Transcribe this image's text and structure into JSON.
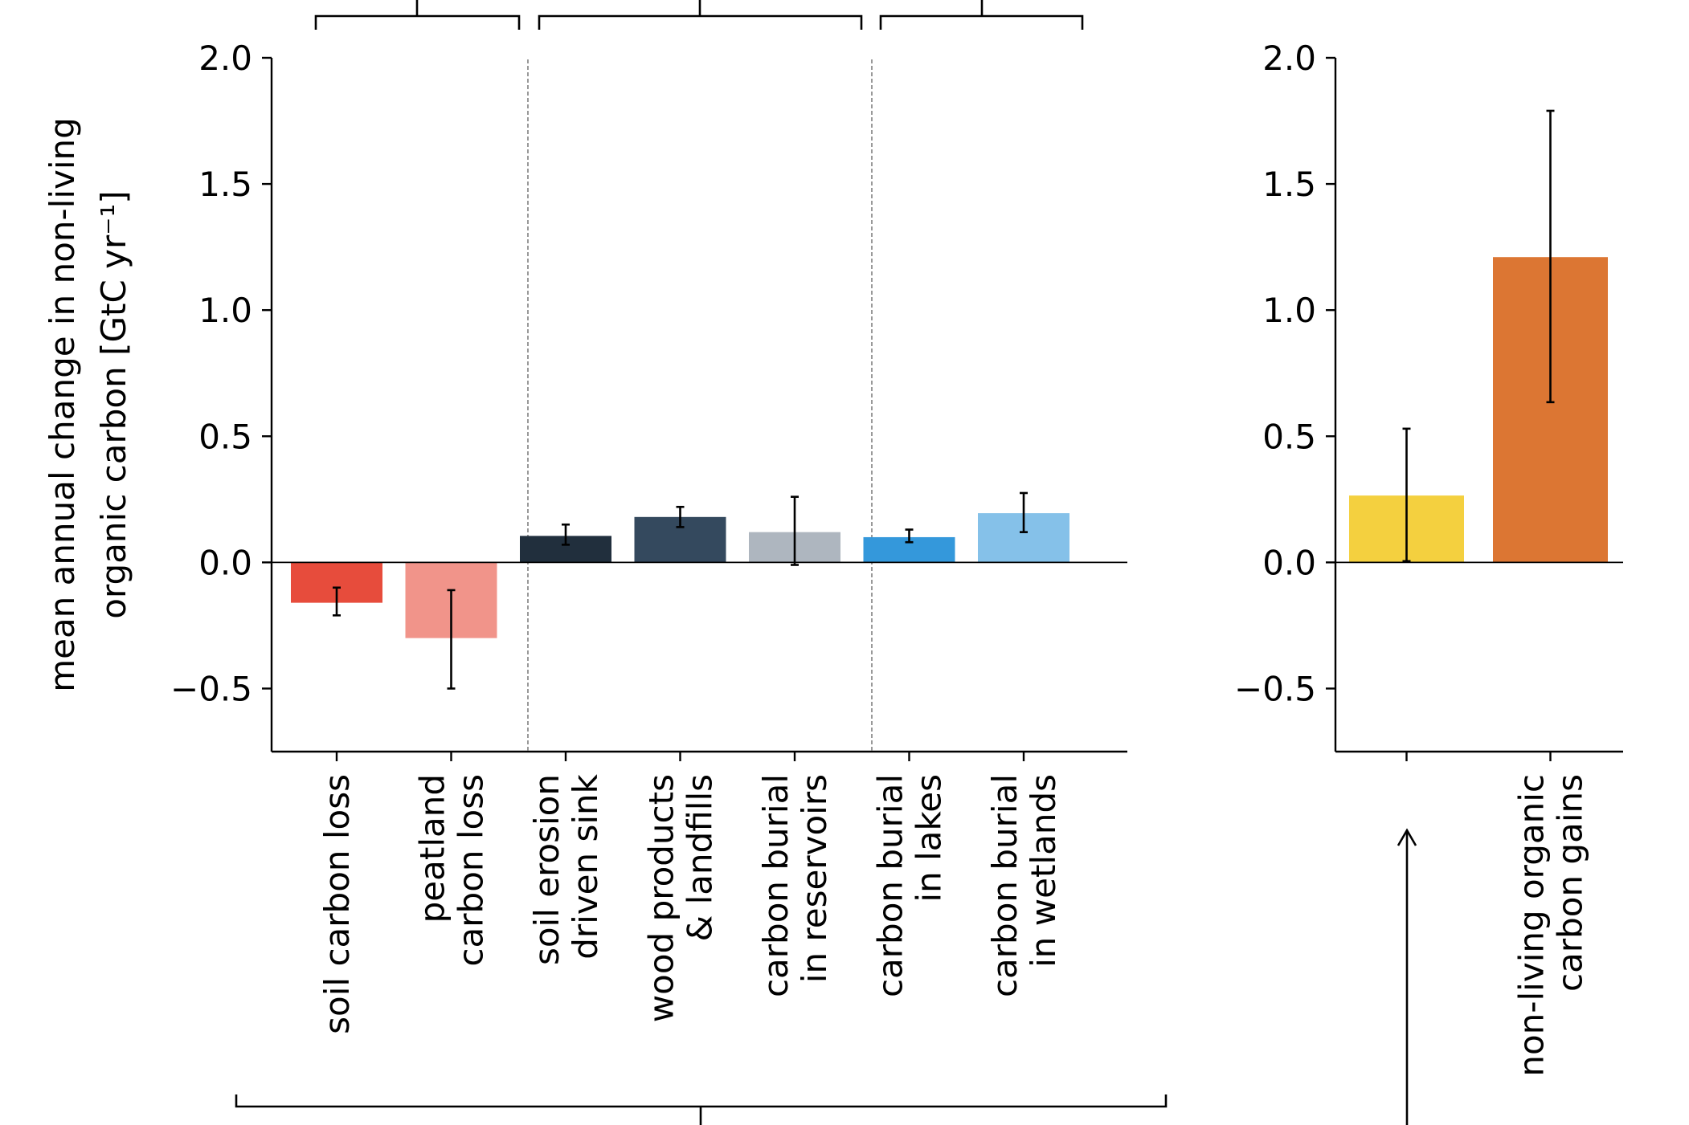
{
  "chart_data": [
    {
      "type": "bar",
      "ylabel_lines": [
        "mean annual change in non-living",
        "organic carbon [GtC yr⁻¹]"
      ],
      "ylim": [
        -0.75,
        2.0
      ],
      "yticks": [
        "−0.5",
        "0.0",
        "0.5",
        "1.0",
        "1.5",
        "2.0"
      ],
      "ytick_values": [
        -0.5,
        0.0,
        0.5,
        1.0,
        1.5,
        2.0
      ],
      "grid": false,
      "categories": [
        {
          "lines": [
            "soil carbon loss"
          ],
          "value": -0.16,
          "err_low": -0.21,
          "err_high": -0.1,
          "color": "#e74c3c"
        },
        {
          "lines": [
            "peatland",
            "carbon loss"
          ],
          "value": -0.3,
          "err_low": -0.5,
          "err_high": -0.11,
          "color": "#f1948a"
        },
        {
          "lines": [
            "soil erosion",
            "driven sink"
          ],
          "value": 0.105,
          "err_low": 0.07,
          "err_high": 0.15,
          "color": "#212f3d"
        },
        {
          "lines": [
            "wood products",
            "& landfills"
          ],
          "value": 0.18,
          "err_low": 0.14,
          "err_high": 0.22,
          "color": "#34495e"
        },
        {
          "lines": [
            "carbon burial",
            "in reservoirs"
          ],
          "value": 0.12,
          "err_low": -0.01,
          "err_high": 0.26,
          "color": "#aeb6bf"
        },
        {
          "lines": [
            "carbon burial",
            "in lakes"
          ],
          "value": 0.1,
          "err_low": 0.08,
          "err_high": 0.13,
          "color": "#3498db"
        },
        {
          "lines": [
            "carbon burial",
            "in wetlands"
          ],
          "value": 0.195,
          "err_low": 0.12,
          "err_high": 0.275,
          "color": "#85c1e9"
        }
      ]
    },
    {
      "type": "bar",
      "ylim": [
        -0.75,
        2.0
      ],
      "yticks": [
        "−0.5",
        "0.0",
        "0.5",
        "1.0",
        "1.5",
        "2.0"
      ],
      "ytick_values": [
        -0.5,
        0.0,
        0.5,
        1.0,
        1.5,
        2.0
      ],
      "grid": false,
      "categories": [
        {
          "lines": [],
          "value": 0.265,
          "err_low": 0.005,
          "err_high": 0.53,
          "color": "#f4d03f"
        },
        {
          "lines": [
            "non-living organic",
            "carbon gains"
          ],
          "value": 1.21,
          "err_low": 0.635,
          "err_high": 1.79,
          "color": "#dc7633"
        }
      ]
    }
  ]
}
